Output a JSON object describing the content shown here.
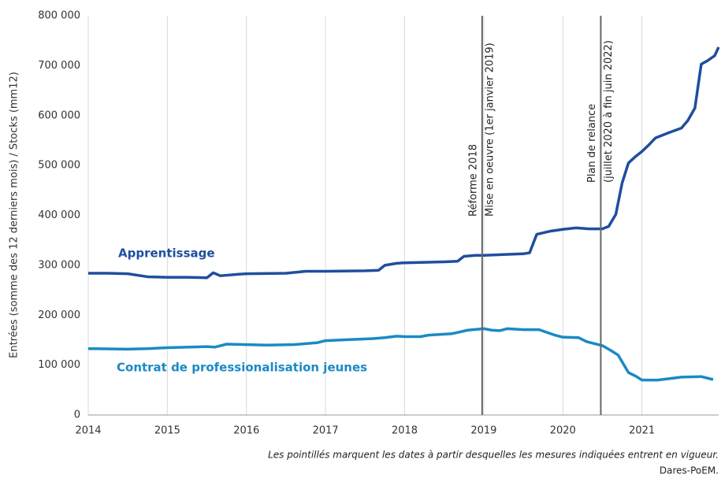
{
  "chart_data": {
    "type": "line",
    "y_label": "Entrées (somme des 12 derniers mois) / Stocks (mm12)",
    "footnote": "Les pointillés marquent les dates à partir desquelles les mesures indiquées entrent en vigueur.",
    "source": "Dares-PoEM.",
    "xlim": [
      2014,
      2021.97
    ],
    "xticks": [
      2014,
      2015,
      2016,
      2017,
      2018,
      2019,
      2020,
      2021
    ],
    "ylim": [
      0,
      800000
    ],
    "yticks": [
      0,
      {
        "value": 100000,
        "label": "100 000"
      },
      {
        "value": 200000,
        "label": "200 000"
      },
      {
        "value": 300000,
        "label": "300 000"
      },
      {
        "value": 400000,
        "label": "400 000"
      },
      {
        "value": 500000,
        "label": "500 000"
      },
      {
        "value": 600000,
        "label": "600 000"
      },
      {
        "value": 700000,
        "label": "700 000"
      },
      {
        "value": 800000,
        "label": "800 000"
      }
    ],
    "grid": "x",
    "annotations": [
      {
        "x": 2018.98,
        "lines": [
          "Réforme 2018",
          "Mise en oeuvre (1er janvier 2019)"
        ]
      },
      {
        "x": 2020.48,
        "lines": [
          "Plan de relance",
          "(juillet 2020 à fin juin 2022)"
        ]
      }
    ],
    "series": [
      {
        "name": "Apprentissage",
        "color": "#1f4e9e",
        "x": [
          2014.0,
          2014.25,
          2014.5,
          2014.75,
          2015.0,
          2015.25,
          2015.5,
          2015.58,
          2015.67,
          2015.9,
          2016.0,
          2016.5,
          2016.75,
          2017.0,
          2017.5,
          2017.67,
          2017.75,
          2017.9,
          2018.0,
          2018.5,
          2018.67,
          2018.75,
          2018.9,
          2019.0,
          2019.5,
          2019.58,
          2019.67,
          2019.83,
          2020.0,
          2020.17,
          2020.33,
          2020.5,
          2020.58,
          2020.67,
          2020.75,
          2020.83,
          2020.92,
          2021.0,
          2021.08,
          2021.17,
          2021.33,
          2021.5,
          2021.58,
          2021.67,
          2021.75,
          2021.83,
          2021.92,
          2021.97
        ],
        "values": [
          284000,
          284000,
          283000,
          277000,
          276000,
          276000,
          275000,
          285000,
          279000,
          282000,
          283000,
          284000,
          288000,
          288000,
          289000,
          290000,
          300000,
          304000,
          305000,
          307000,
          308000,
          318000,
          320000,
          320000,
          323000,
          325000,
          362000,
          368000,
          372000,
          375000,
          373000,
          373000,
          378000,
          402000,
          465000,
          505000,
          518000,
          528000,
          540000,
          555000,
          565000,
          575000,
          590000,
          615000,
          703000,
          710000,
          720000,
          737000
        ]
      },
      {
        "name": "Contrat de professionalisation jeunes",
        "color": "#1a8ac4",
        "x": [
          2014.0,
          2014.5,
          2014.75,
          2015.0,
          2015.5,
          2015.6,
          2015.75,
          2016.0,
          2016.25,
          2016.6,
          2016.9,
          2017.0,
          2017.3,
          2017.6,
          2017.75,
          2017.9,
          2018.0,
          2018.2,
          2018.3,
          2018.6,
          2018.8,
          2019.0,
          2019.1,
          2019.2,
          2019.3,
          2019.5,
          2019.7,
          2019.9,
          2020.0,
          2020.2,
          2020.3,
          2020.5,
          2020.6,
          2020.7,
          2020.83,
          2020.92,
          2021.0,
          2021.2,
          2021.5,
          2021.75,
          2021.9
        ],
        "values": [
          133000,
          132000,
          133000,
          135000,
          137000,
          136000,
          142000,
          141000,
          140000,
          141000,
          145000,
          149000,
          151000,
          153000,
          155000,
          158000,
          157000,
          157000,
          160000,
          163000,
          170000,
          173000,
          170000,
          169000,
          173000,
          171000,
          171000,
          160000,
          156000,
          155000,
          147000,
          139000,
          130000,
          120000,
          85000,
          78000,
          70000,
          70000,
          76000,
          77000,
          71000
        ]
      }
    ]
  }
}
